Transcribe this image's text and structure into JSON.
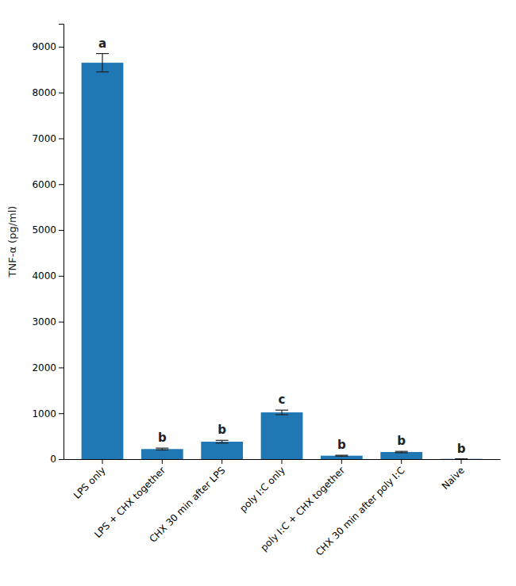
{
  "chart_data": {
    "type": "bar",
    "categories": [
      "LPS only",
      "LPS + CHX together",
      "CHX 30 min after LPS",
      "poly I:C only",
      "poly I:C + CHX together",
      "CHX 30 min after poly I:C",
      "Naive"
    ],
    "values": [
      8650,
      220,
      380,
      1020,
      75,
      155,
      5
    ],
    "errors": [
      200,
      20,
      30,
      50,
      10,
      15,
      2
    ],
    "annotations": [
      "a",
      "b",
      "b",
      "c",
      "b",
      "b",
      "b"
    ],
    "ylabel": "TNF-α (pg/ml)",
    "ylim": [
      0,
      9500
    ],
    "yticks": [
      0,
      1000,
      2000,
      3000,
      4000,
      5000,
      6000,
      7000,
      8000,
      9000
    ],
    "grid": false
  }
}
